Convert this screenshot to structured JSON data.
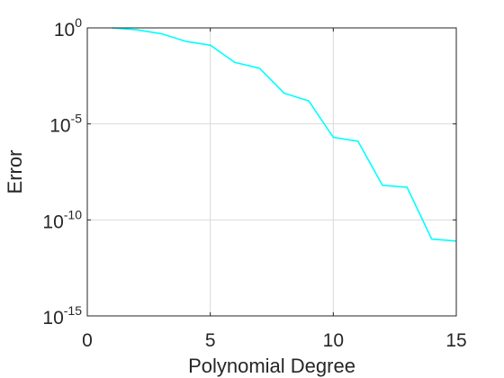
{
  "chart_data": {
    "type": "line",
    "title": "",
    "xlabel": "Polynomial Degree",
    "ylabel": "Error",
    "xlim": [
      0,
      15
    ],
    "ylim_exponent": [
      -15,
      0
    ],
    "yscale": "log",
    "grid": true,
    "x_ticks": [
      {
        "value": 0,
        "label": "0"
      },
      {
        "value": 5,
        "label": "5"
      },
      {
        "value": 10,
        "label": "10"
      },
      {
        "value": 15,
        "label": "15"
      }
    ],
    "y_ticks": [
      {
        "exponent": 0,
        "base": "10",
        "sup": "0"
      },
      {
        "exponent": -5,
        "base": "10",
        "sup": "-5"
      },
      {
        "exponent": -10,
        "base": "10",
        "sup": "-10"
      },
      {
        "exponent": -15,
        "base": "10",
        "sup": "-15"
      }
    ],
    "series": [
      {
        "color": "#00ffff",
        "x": [
          1,
          2,
          3,
          4,
          5,
          6,
          7,
          8,
          9,
          10,
          11,
          12,
          13,
          14,
          15
        ],
        "y_exponent": [
          0,
          -0.1,
          -0.3,
          -0.7,
          -0.9,
          -1.8,
          -2.1,
          -3.4,
          -3.8,
          -5.7,
          -5.9,
          -8.2,
          -8.3,
          -11.0,
          -11.1
        ]
      }
    ]
  }
}
